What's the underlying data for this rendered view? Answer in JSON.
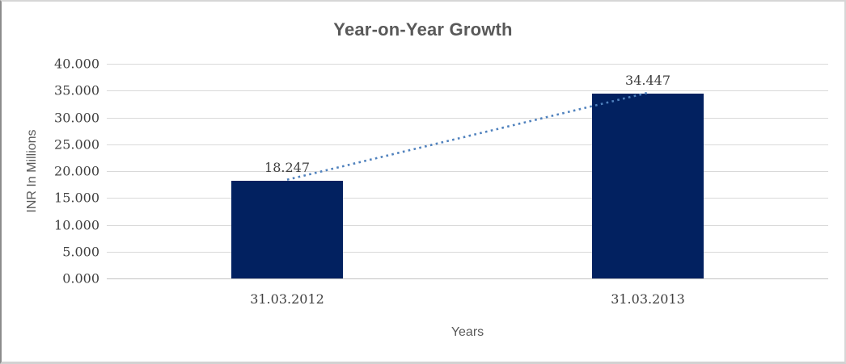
{
  "chart_data": {
    "type": "bar",
    "title": "Year-on-Year Growth",
    "xlabel": "Years",
    "ylabel": "INR In Millions",
    "categories": [
      "31.03.2012",
      "31.03.2013"
    ],
    "values": [
      18.247,
      34.447
    ],
    "data_labels": [
      "18.247",
      "34.447"
    ],
    "ylim": [
      0,
      40
    ],
    "y_ticks": [
      {
        "value": 0,
        "label": "0.000"
      },
      {
        "value": 5,
        "label": "5.000"
      },
      {
        "value": 10,
        "label": "10.000"
      },
      {
        "value": 15,
        "label": "15.000"
      },
      {
        "value": 20,
        "label": "20.000"
      },
      {
        "value": 25,
        "label": "25.000"
      },
      {
        "value": 30,
        "label": "30.000"
      },
      {
        "value": 35,
        "label": "35.000"
      },
      {
        "value": 40,
        "label": "40.000"
      }
    ],
    "grid": "horizontal",
    "legend": "none",
    "trendline": {
      "style": "dotted",
      "connects": "bar-tops"
    },
    "colors": {
      "bar": "#022160",
      "trend": "#4f81bd",
      "gridline": "#d9d9d9",
      "axis_line": "#c3c3c3",
      "title_text": "#595959",
      "tick_text": "#3f3f3f"
    }
  }
}
